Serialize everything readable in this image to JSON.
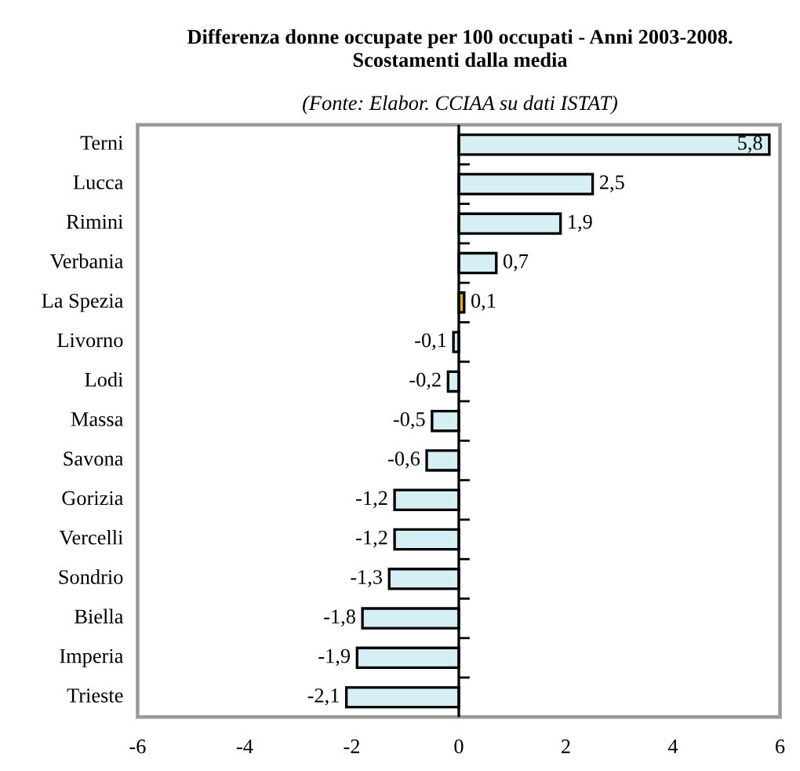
{
  "chart_data": {
    "type": "bar",
    "orientation": "horizontal",
    "title": "Differenza donne occupate per 100 occupati - Anni 2003-2008.\nScostamenti dalla media",
    "subtitle": "(Fonte: Elabor. CCIAA su dati ISTAT)",
    "categories": [
      "Terni",
      "Lucca",
      "Rimini",
      "Verbania",
      "La Spezia",
      "Livorno",
      "Lodi",
      "Massa",
      "Savona",
      "Gorizia",
      "Vercelli",
      "Sondrio",
      "Biella",
      "Imperia",
      "Trieste"
    ],
    "values": [
      5.8,
      2.5,
      1.9,
      0.7,
      0.1,
      -0.1,
      -0.2,
      -0.5,
      -0.6,
      -1.2,
      -1.2,
      -1.3,
      -1.8,
      -1.9,
      -2.1
    ],
    "value_labels": [
      "5,8",
      "2,5",
      "1,9",
      "0,7",
      "0,1",
      "-0,1",
      "-0,2",
      "-0,5",
      "-0,6",
      "-1,2",
      "-1,2",
      "-1,3",
      "-1,8",
      "-1,9",
      "-2,1"
    ],
    "colors": [
      "#d5eff5",
      "#d5eff5",
      "#d5eff5",
      "#d5eff5",
      "#e6b000",
      "#d5eff5",
      "#d5eff5",
      "#d5eff5",
      "#d5eff5",
      "#d5eff5",
      "#d5eff5",
      "#d5eff5",
      "#d5eff5",
      "#d5eff5",
      "#d5eff5"
    ],
    "xlim": [
      -6,
      6
    ],
    "xticks": [
      -6,
      -4,
      -2,
      0,
      2,
      4,
      6
    ],
    "ref_lines": [
      {
        "axis": "x",
        "value": 0,
        "color": "#000000",
        "line_style": "solid"
      }
    ],
    "grid": false,
    "legend": false
  }
}
